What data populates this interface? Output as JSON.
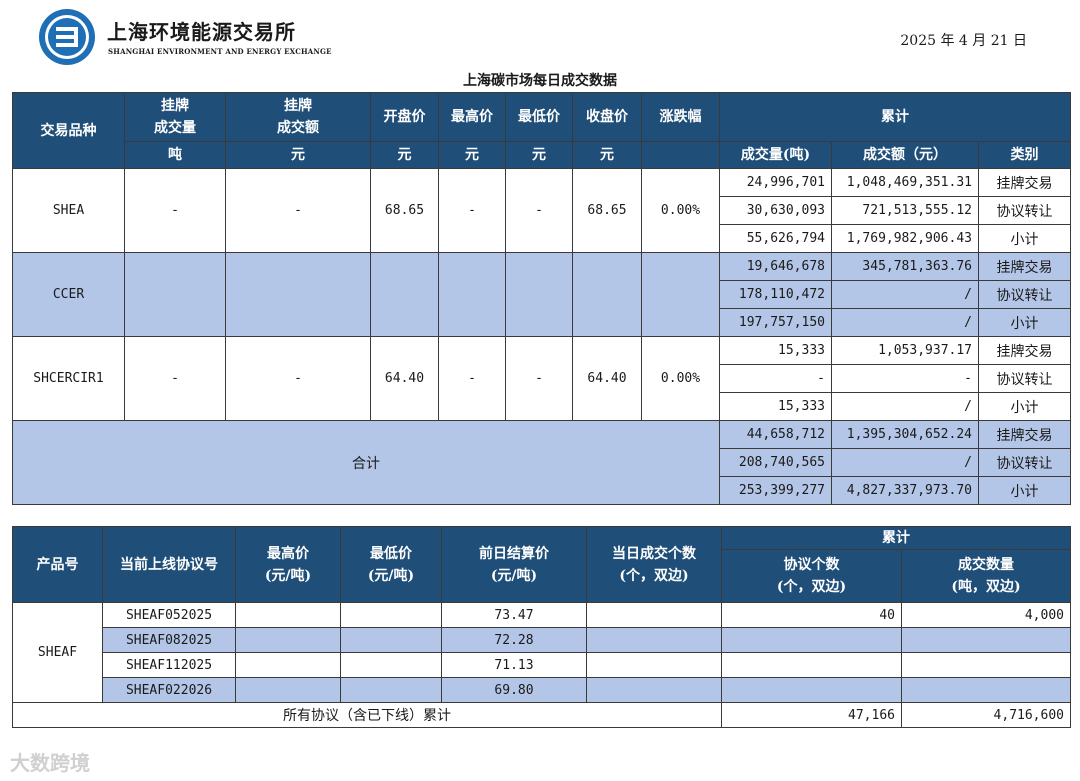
{
  "header": {
    "org_cn": "上海环境能源交易所",
    "org_en": "SHANGHAI ENVIRONMENT AND ENERGY EXCHANGE",
    "date": "2025 年 4 月 21 日",
    "title": "上海碳市场每日成交数据"
  },
  "t1": {
    "head": {
      "col1": "交易品种",
      "col2": "挂牌\n成交量",
      "col3": "挂牌\n成交额",
      "col4": "开盘价",
      "col5": "最高价",
      "col6": "最低价",
      "col7": "收盘价",
      "col8": "涨跌幅",
      "cum": "累计",
      "unit2": "吨",
      "unit3": "元",
      "unit4": "元",
      "unit5": "元",
      "unit6": "元",
      "unit7": "元",
      "cum_vol": "成交量(吨)",
      "cum_amt": "成交额（元）",
      "cum_type": "类别"
    },
    "rows": [
      {
        "name": "SHEA",
        "vol": "-",
        "amt": "-",
        "open": "68.65",
        "high": "-",
        "low": "-",
        "close": "68.65",
        "chg": "0.00%",
        "sub": [
          {
            "v": "24,996,701",
            "a": "1,048,469,351.31",
            "t": "挂牌交易"
          },
          {
            "v": "30,630,093",
            "a": "721,513,555.12",
            "t": "协议转让"
          },
          {
            "v": "55,626,794",
            "a": "1,769,982,906.43",
            "t": "小计"
          }
        ]
      },
      {
        "name": "CCER",
        "vol": "",
        "amt": "",
        "open": "",
        "high": "",
        "low": "",
        "close": "",
        "chg": "",
        "sub": [
          {
            "v": "19,646,678",
            "a": "345,781,363.76",
            "t": "挂牌交易"
          },
          {
            "v": "178,110,472",
            "a": "/",
            "t": "协议转让"
          },
          {
            "v": "197,757,150",
            "a": "/",
            "t": "小计"
          }
        ]
      },
      {
        "name": "SHCERCIR1",
        "vol": "-",
        "amt": "-",
        "open": "64.40",
        "high": "-",
        "low": "-",
        "close": "64.40",
        "chg": "0.00%",
        "sub": [
          {
            "v": "15,333",
            "a": "1,053,937.17",
            "t": "挂牌交易"
          },
          {
            "v": "-",
            "a": "-",
            "t": "协议转让"
          },
          {
            "v": "15,333",
            "a": "/",
            "t": "小计"
          }
        ]
      }
    ],
    "total": {
      "label": "合计",
      "sub": [
        {
          "v": "44,658,712",
          "a": "1,395,304,652.24",
          "t": "挂牌交易"
        },
        {
          "v": "208,740,565",
          "a": "/",
          "t": "协议转让"
        },
        {
          "v": "253,399,277",
          "a": "4,827,337,973.70",
          "t": "小计"
        }
      ]
    }
  },
  "t2": {
    "head": {
      "c1": "产品号",
      "c2": "当前上线协议号",
      "c3": "最高价\n(元/吨)",
      "c4": "最低价\n(元/吨)",
      "c5": "前日结算价\n(元/吨)",
      "c6": "当日成交个数\n(个，双边)",
      "cum": "累计",
      "c7": "协议个数\n(个，双边)",
      "c8": "成交数量\n(吨，双边)"
    },
    "product": "SHEAF",
    "rows": [
      {
        "code": "SHEAF052025",
        "high": "",
        "low": "",
        "settle": "73.47",
        "count": "",
        "agree": "40",
        "qty": "4,000"
      },
      {
        "code": "SHEAF082025",
        "high": "",
        "low": "",
        "settle": "72.28",
        "count": "",
        "agree": "",
        "qty": ""
      },
      {
        "code": "SHEAF112025",
        "high": "",
        "low": "",
        "settle": "71.13",
        "count": "",
        "agree": "",
        "qty": ""
      },
      {
        "code": "SHEAF022026",
        "high": "",
        "low": "",
        "settle": "69.80",
        "count": "",
        "agree": "",
        "qty": ""
      }
    ],
    "total": {
      "label": "所有协议（含已下线）累计",
      "agree": "47,166",
      "qty": "4,716,600"
    }
  },
  "watermark": "大数跨境",
  "colors": {
    "header_bg": "#1f4e79",
    "band_bg": "#b4c6e7",
    "logo_blue": "#1e6fb5"
  }
}
